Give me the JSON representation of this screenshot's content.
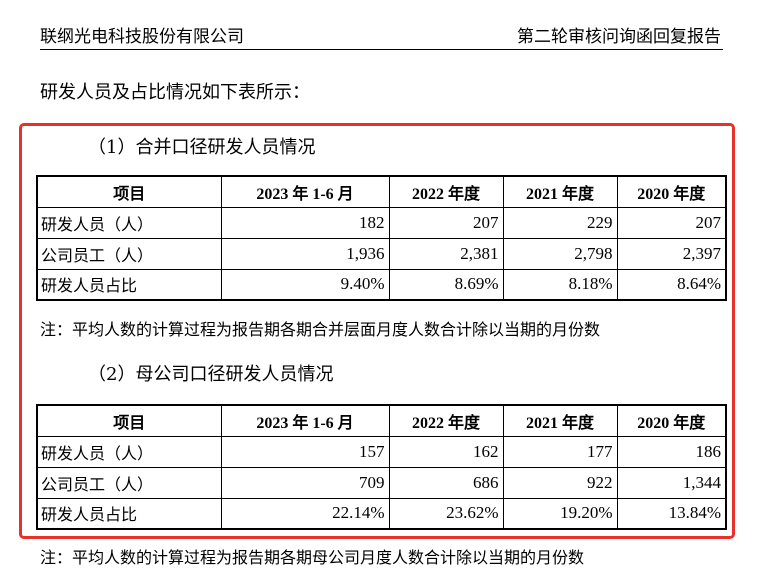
{
  "header": {
    "company": "联纲光电科技股份有限公司",
    "doc_title": "第二轮审核问询函回复报告"
  },
  "intro": "研发人员及占比情况如下表所示：",
  "sections": [
    {
      "title": "（1）合并口径研发人员情况",
      "columns": [
        "项目",
        "2023 年 1-6 月",
        "2022 年度",
        "2021 年度",
        "2020 年度"
      ],
      "rows": [
        {
          "label": "研发人员（人）",
          "values": [
            "182",
            "207",
            "229",
            "207"
          ]
        },
        {
          "label": "公司员工（人）",
          "values": [
            "1,936",
            "2,381",
            "2,798",
            "2,397"
          ]
        },
        {
          "label": "研发人员占比",
          "values": [
            "9.40%",
            "8.69%",
            "8.18%",
            "8.64%"
          ]
        }
      ],
      "note": "注：平均人数的计算过程为报告期各期合并层面月度人数合计除以当期的月份数"
    },
    {
      "title": "（2）母公司口径研发人员情况",
      "columns": [
        "项目",
        "2023 年 1-6 月",
        "2022 年度",
        "2021 年度",
        "2020 年度"
      ],
      "rows": [
        {
          "label": "研发人员（人）",
          "values": [
            "157",
            "162",
            "177",
            "186"
          ]
        },
        {
          "label": "公司员工（人）",
          "values": [
            "709",
            "686",
            "922",
            "1,344"
          ]
        },
        {
          "label": "研发人员占比",
          "values": [
            "22.14%",
            "23.62%",
            "19.20%",
            "13.84%"
          ]
        }
      ],
      "note": "注：平均人数的计算过程为报告期各期母公司月度人数合计除以当期的月份数"
    }
  ],
  "colors": {
    "highlight_border": "#e8312a"
  }
}
